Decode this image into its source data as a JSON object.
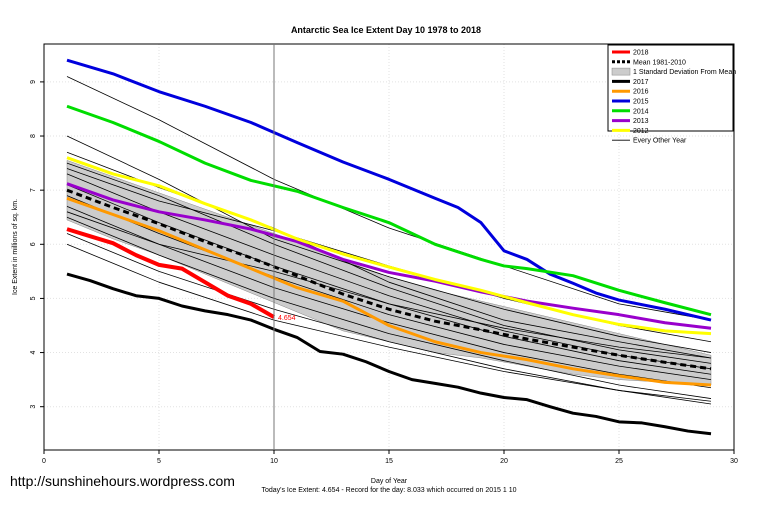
{
  "chart_data": {
    "type": "line",
    "title": "Antarctic Sea Ice Extent Day 10 1978 to 2018",
    "xlabel": "Day of Year",
    "ylabel": "Ice Extent in millions of sq. km.",
    "xlim": [
      0,
      30
    ],
    "ylim": [
      2.2,
      9.7
    ],
    "xticks": [
      0,
      5,
      10,
      15,
      20,
      25,
      30
    ],
    "yticks": [
      3,
      4,
      5,
      6,
      7,
      8,
      9
    ],
    "grid": true,
    "legend_position": "top-right",
    "marker_line_x": 10,
    "annotation": "4.654",
    "footer": "Today's Ice Extent: 4.654  - Record for the day: 8.033 which occurred on 2015 1 10",
    "watermark": "http://sunshinehours.wordpress.com",
    "mean_band": {
      "label": "1 Standard Deviation From Mean",
      "color": "#cccccc",
      "x": [
        1,
        3,
        5,
        7,
        9,
        11,
        13,
        15,
        17,
        19,
        21,
        23,
        25,
        27,
        29
      ],
      "upper": [
        7.55,
        7.25,
        6.95,
        6.65,
        6.35,
        6.05,
        5.7,
        5.4,
        5.15,
        4.95,
        4.75,
        4.55,
        4.35,
        4.15,
        3.95
      ],
      "lower": [
        6.45,
        6.1,
        5.8,
        5.45,
        5.1,
        4.75,
        4.4,
        4.2,
        4.0,
        3.9,
        3.75,
        3.6,
        3.5,
        3.45,
        3.4
      ]
    },
    "series": [
      {
        "name": "2018",
        "color": "#ff0000",
        "width": 4,
        "x": [
          1,
          2,
          3,
          4,
          5,
          6,
          7,
          8,
          9,
          10
        ],
        "y": [
          6.28,
          6.15,
          6.02,
          5.8,
          5.62,
          5.55,
          5.3,
          5.05,
          4.9,
          4.654
        ]
      },
      {
        "name": "Mean 1981-2010",
        "color": "#000000",
        "width": 3,
        "dash": "6,4",
        "x": [
          1,
          3,
          5,
          7,
          9,
          11,
          13,
          15,
          17,
          19,
          21,
          23,
          25,
          27,
          29
        ],
        "y": [
          7.0,
          6.68,
          6.38,
          6.05,
          5.75,
          5.42,
          5.08,
          4.8,
          4.58,
          4.42,
          4.25,
          4.1,
          3.95,
          3.82,
          3.7
        ]
      },
      {
        "name": "2017",
        "color": "#000000",
        "width": 3,
        "x": [
          1,
          2,
          3,
          4,
          5,
          6,
          7,
          8,
          9,
          10,
          11,
          12,
          13,
          14,
          15,
          16,
          17,
          18,
          19,
          20,
          21,
          22,
          23,
          24,
          25,
          26,
          27,
          28,
          29
        ],
        "y": [
          5.45,
          5.33,
          5.18,
          5.05,
          5.0,
          4.86,
          4.77,
          4.7,
          4.6,
          4.43,
          4.28,
          4.02,
          3.97,
          3.83,
          3.65,
          3.5,
          3.43,
          3.36,
          3.25,
          3.17,
          3.13,
          3.0,
          2.88,
          2.82,
          2.72,
          2.7,
          2.63,
          2.55,
          2.5
        ]
      },
      {
        "name": "2016",
        "color": "#ff9900",
        "width": 3,
        "x": [
          1,
          3,
          5,
          7,
          9,
          11,
          13,
          15,
          17,
          19,
          21,
          23,
          25,
          27,
          29
        ],
        "y": [
          6.85,
          6.55,
          6.25,
          5.9,
          5.55,
          5.2,
          4.95,
          4.5,
          4.2,
          4.0,
          3.87,
          3.7,
          3.57,
          3.45,
          3.4
        ]
      },
      {
        "name": "2015",
        "color": "#0000dd",
        "width": 3,
        "x": [
          1,
          3,
          5,
          7,
          9,
          11,
          13,
          15,
          17,
          18,
          19,
          20,
          21,
          22,
          23,
          24,
          25,
          27,
          29
        ],
        "y": [
          9.4,
          9.15,
          8.82,
          8.55,
          8.25,
          7.88,
          7.52,
          7.2,
          6.85,
          6.68,
          6.4,
          5.88,
          5.72,
          5.45,
          5.28,
          5.1,
          4.97,
          4.8,
          4.6
        ]
      },
      {
        "name": "2014",
        "color": "#00dd00",
        "width": 3,
        "x": [
          1,
          3,
          5,
          7,
          9,
          11,
          13,
          15,
          17,
          19,
          20,
          21,
          23,
          25,
          27,
          29
        ],
        "y": [
          8.55,
          8.25,
          7.9,
          7.5,
          7.18,
          6.98,
          6.68,
          6.4,
          6.0,
          5.72,
          5.6,
          5.55,
          5.42,
          5.15,
          4.92,
          4.7
        ]
      },
      {
        "name": "2013",
        "color": "#9900cc",
        "width": 3,
        "x": [
          1,
          3,
          5,
          7,
          9,
          11,
          13,
          15,
          17,
          19,
          21,
          23,
          25,
          27,
          29
        ],
        "y": [
          7.12,
          6.82,
          6.6,
          6.45,
          6.28,
          6.05,
          5.72,
          5.48,
          5.32,
          5.12,
          4.95,
          4.82,
          4.7,
          4.55,
          4.45
        ]
      },
      {
        "name": "2012",
        "color": "#ffff00",
        "width": 3,
        "x": [
          1,
          3,
          5,
          7,
          9,
          11,
          13,
          15,
          17,
          19,
          21,
          23,
          25,
          27,
          29
        ],
        "y": [
          7.6,
          7.3,
          7.08,
          6.75,
          6.45,
          6.1,
          5.82,
          5.58,
          5.35,
          5.15,
          4.92,
          4.7,
          4.52,
          4.4,
          4.35
        ]
      },
      {
        "name": "Every Other Year",
        "color": "#000000",
        "width": 0.8,
        "x": [
          1,
          5,
          10,
          15,
          20,
          25,
          29
        ],
        "y": [
          9.1,
          8.3,
          7.2,
          6.3,
          5.6,
          4.9,
          4.6
        ]
      },
      {
        "name": "",
        "color": "#000000",
        "width": 0.8,
        "x": [
          1,
          5,
          10,
          15,
          20,
          25,
          29
        ],
        "y": [
          8.0,
          7.2,
          6.1,
          5.4,
          4.8,
          4.3,
          4.0
        ]
      },
      {
        "name": "",
        "color": "#000000",
        "width": 0.8,
        "x": [
          1,
          5,
          10,
          15,
          20,
          25,
          29
        ],
        "y": [
          7.7,
          7.05,
          6.3,
          5.3,
          4.6,
          4.2,
          3.9
        ]
      },
      {
        "name": "",
        "color": "#000000",
        "width": 0.8,
        "x": [
          1,
          5,
          10,
          15,
          20,
          25,
          29
        ],
        "y": [
          7.5,
          6.9,
          6.0,
          5.2,
          4.5,
          4.05,
          3.8
        ]
      },
      {
        "name": "",
        "color": "#000000",
        "width": 0.8,
        "x": [
          1,
          5,
          10,
          15,
          20,
          25,
          29
        ],
        "y": [
          7.3,
          6.6,
          5.8,
          5.05,
          4.4,
          3.95,
          3.7
        ]
      },
      {
        "name": "",
        "color": "#000000",
        "width": 0.8,
        "x": [
          1,
          5,
          10,
          15,
          20,
          25,
          29
        ],
        "y": [
          7.1,
          6.4,
          5.6,
          4.9,
          4.3,
          3.85,
          3.6
        ]
      },
      {
        "name": "",
        "color": "#000000",
        "width": 0.8,
        "x": [
          1,
          5,
          10,
          15,
          20,
          25,
          29
        ],
        "y": [
          6.9,
          6.2,
          5.4,
          4.7,
          4.15,
          3.75,
          3.5
        ]
      },
      {
        "name": "",
        "color": "#000000",
        "width": 0.8,
        "x": [
          1,
          5,
          10,
          15,
          20,
          25,
          29
        ],
        "y": [
          6.7,
          6.0,
          5.2,
          4.55,
          4.0,
          3.6,
          3.35
        ]
      },
      {
        "name": "",
        "color": "#000000",
        "width": 0.8,
        "x": [
          1,
          5,
          10,
          15,
          20,
          25,
          29
        ],
        "y": [
          6.5,
          5.8,
          5.0,
          4.35,
          3.85,
          3.4,
          3.15
        ]
      },
      {
        "name": "",
        "color": "#000000",
        "width": 0.8,
        "x": [
          1,
          5,
          10,
          15,
          20,
          25,
          29
        ],
        "y": [
          6.2,
          5.5,
          4.8,
          4.2,
          3.7,
          3.3,
          3.05
        ]
      },
      {
        "name": "",
        "color": "#000000",
        "width": 0.8,
        "x": [
          1,
          5,
          10,
          15,
          20,
          25,
          29
        ],
        "y": [
          6.0,
          5.3,
          4.6,
          4.1,
          3.65,
          3.3,
          3.1
        ]
      },
      {
        "name": "",
        "color": "#000000",
        "width": 0.8,
        "x": [
          1,
          5,
          10,
          15,
          20,
          25,
          29
        ],
        "y": [
          7.4,
          6.8,
          6.25,
          5.6,
          5.0,
          4.5,
          4.2
        ]
      },
      {
        "name": "",
        "color": "#000000",
        "width": 0.8,
        "x": [
          1,
          5,
          10,
          15,
          20,
          25,
          29
        ],
        "y": [
          6.6,
          6.0,
          5.5,
          4.9,
          4.45,
          4.1,
          3.9
        ]
      }
    ]
  }
}
